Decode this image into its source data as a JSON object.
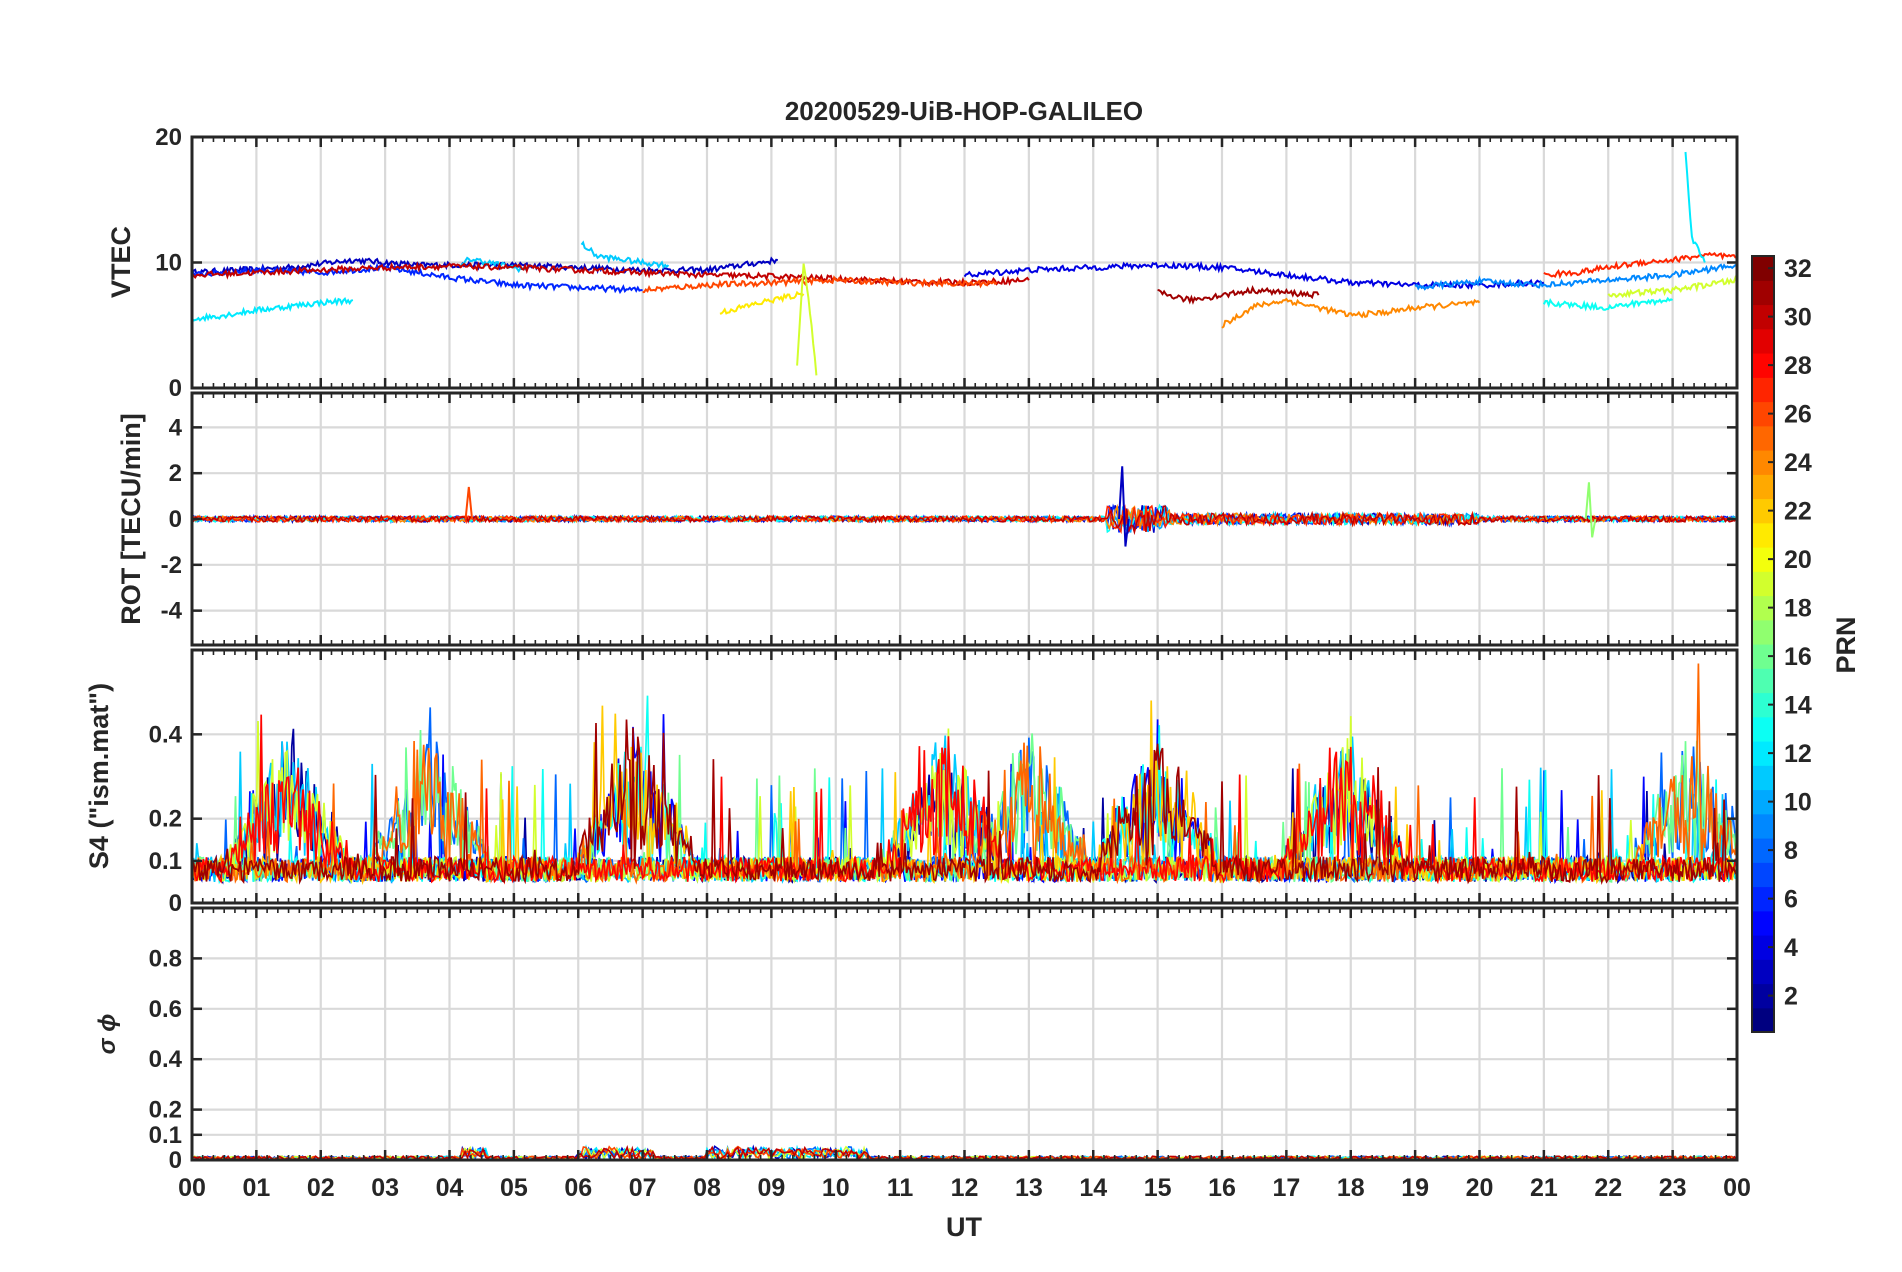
{
  "chart_data": {
    "type": "line",
    "title": "20200529-UiB-HOP-GALILEO",
    "xlabel": "UT",
    "x_range_hours": [
      0,
      24
    ],
    "x_tick_labels": [
      "00",
      "01",
      "02",
      "03",
      "04",
      "05",
      "06",
      "07",
      "08",
      "09",
      "10",
      "11",
      "12",
      "13",
      "14",
      "15",
      "16",
      "17",
      "18",
      "19",
      "20",
      "21",
      "22",
      "23",
      "00"
    ],
    "colormap": "jet",
    "colorbar": {
      "label": "PRN",
      "range": [
        1,
        32
      ],
      "tick_labels": [
        "2",
        "4",
        "6",
        "8",
        "10",
        "12",
        "14",
        "16",
        "18",
        "20",
        "22",
        "24",
        "26",
        "28",
        "30",
        "32"
      ]
    },
    "panels": [
      {
        "name": "vtec",
        "ylabel": "VTEC",
        "ylim": [
          0,
          20
        ],
        "y_tick_labels": [
          "0",
          "10",
          "20"
        ],
        "series": [
          {
            "prn": 3,
            "x": [
              0,
              1.5,
              2.5,
              3.5,
              5,
              6,
              7,
              8,
              9.1
            ],
            "y": [
              9.2,
              9.6,
              10.2,
              9.8,
              9.8,
              9.6,
              9.4,
              9.4,
              10.2
            ]
          },
          {
            "prn": 6,
            "x": [
              0,
              1,
              2,
              3,
              4,
              5,
              6,
              7
            ],
            "y": [
              9,
              9.4,
              9.2,
              9.6,
              8.8,
              8.2,
              8,
              7.8
            ]
          },
          {
            "prn": 12,
            "x": [
              0,
              0.5,
              1,
              2,
              2.5
            ],
            "y": [
              5.5,
              5.8,
              6.2,
              6.8,
              7
            ]
          },
          {
            "prn": 11,
            "x": [
              4.15,
              4.3,
              4.8,
              5.2
            ],
            "y": [
              9.5,
              10.3,
              9.8,
              9.4
            ]
          },
          {
            "prn": 11,
            "x": [
              6.05,
              6.3,
              7,
              7.4
            ],
            "y": [
              11.5,
              10.5,
              10,
              9.8
            ]
          },
          {
            "prn": 30,
            "x": [
              0,
              1,
              2,
              3,
              4,
              5,
              6,
              7,
              8,
              9,
              10,
              11,
              12,
              13
            ],
            "y": [
              9,
              9.2,
              9.4,
              9.6,
              9.7,
              9.6,
              9.4,
              9.2,
              9.0,
              8.9,
              8.7,
              8.5,
              8.4,
              8.6
            ]
          },
          {
            "prn": 26,
            "x": [
              7,
              8,
              9,
              10,
              11,
              12,
              12.5
            ],
            "y": [
              7.8,
              8.2,
              8.4,
              8.6,
              8.4,
              8.3,
              8.4
            ]
          },
          {
            "prn": 21,
            "x": [
              8.2,
              8.6,
              9,
              9.5
            ],
            "y": [
              6,
              6.5,
              7,
              7.5
            ]
          },
          {
            "prn": 19,
            "x": [
              9.4,
              9.5,
              9.6,
              9.7
            ],
            "y": [
              2,
              10,
              6,
              1
            ]
          },
          {
            "prn": 24,
            "x": [
              16,
              16.5,
              17,
              17.5,
              18,
              18.5,
              19,
              19.5,
              20
            ],
            "y": [
              5,
              6.5,
              7,
              6.4,
              5.8,
              6,
              6.4,
              6.6,
              6.8
            ]
          },
          {
            "prn": 31,
            "x": [
              15,
              15.5,
              16,
              16.5,
              17,
              17.5
            ],
            "y": [
              7.6,
              7,
              7.4,
              7.8,
              7.6,
              7.4
            ]
          },
          {
            "prn": 4,
            "x": [
              12,
              13,
              14,
              15,
              16,
              17,
              18,
              19,
              20,
              21
            ],
            "y": [
              9,
              9.4,
              9.6,
              9.8,
              9.6,
              9,
              8.4,
              8.2,
              8.2,
              8.4
            ]
          },
          {
            "prn": 9,
            "x": [
              19,
              20,
              21,
              21.5,
              22,
              23,
              24
            ],
            "y": [
              8,
              8.5,
              8.2,
              8.4,
              8.6,
              9,
              9.8
            ]
          },
          {
            "prn": 27,
            "x": [
              21,
              21.5,
              22,
              22.5,
              23,
              23.5,
              24
            ],
            "y": [
              9,
              9.2,
              9.6,
              10,
              10.2,
              10.6,
              10.4
            ]
          },
          {
            "prn": 13,
            "x": [
              21,
              21.5,
              22,
              22.5,
              23
            ],
            "y": [
              6.8,
              6.6,
              6.4,
              6.8,
              7
            ]
          },
          {
            "prn": 12,
            "x": [
              23.2,
              23.3,
              23.5
            ],
            "y": [
              19,
              12,
              10
            ]
          },
          {
            "prn": 19,
            "x": [
              22,
              22.5,
              23,
              23.5,
              24
            ],
            "y": [
              7.4,
              7.6,
              7.8,
              8.2,
              8.6
            ]
          }
        ]
      },
      {
        "name": "rot",
        "ylabel": "ROT [TECU/min]",
        "ylim": [
          -5.5,
          5.5
        ],
        "y_tick_labels": [
          "-4",
          "-2",
          "0",
          "2",
          "4"
        ],
        "features": {
          "baseline": 0,
          "spike_at_4_3h": 1.4,
          "burst_14_5h_max": 2.3,
          "burst_14_5h_min": -1.2,
          "spike_at_21_7h": 1.6
        }
      },
      {
        "name": "s4",
        "ylabel": "S4 (\"ism.mat\")",
        "ylim": [
          0,
          0.6
        ],
        "y_tick_labels": [
          "0",
          "0.1",
          "0.2",
          "0.4"
        ],
        "features": {
          "background_range": [
            0.05,
            0.15
          ],
          "peak_hours": [
            1.5,
            3.7,
            6.9,
            11.7,
            13,
            15,
            17.9,
            23.3
          ],
          "max": 0.6
        }
      },
      {
        "name": "sigma_phi",
        "ylabel": "σ ϕ",
        "ylim": [
          0,
          1
        ],
        "y_tick_labels": [
          "0",
          "0.1",
          "0.2",
          "0.4",
          "0.6",
          "0.8"
        ],
        "features": {
          "typical_range": [
            0.0,
            0.06
          ]
        }
      }
    ]
  }
}
